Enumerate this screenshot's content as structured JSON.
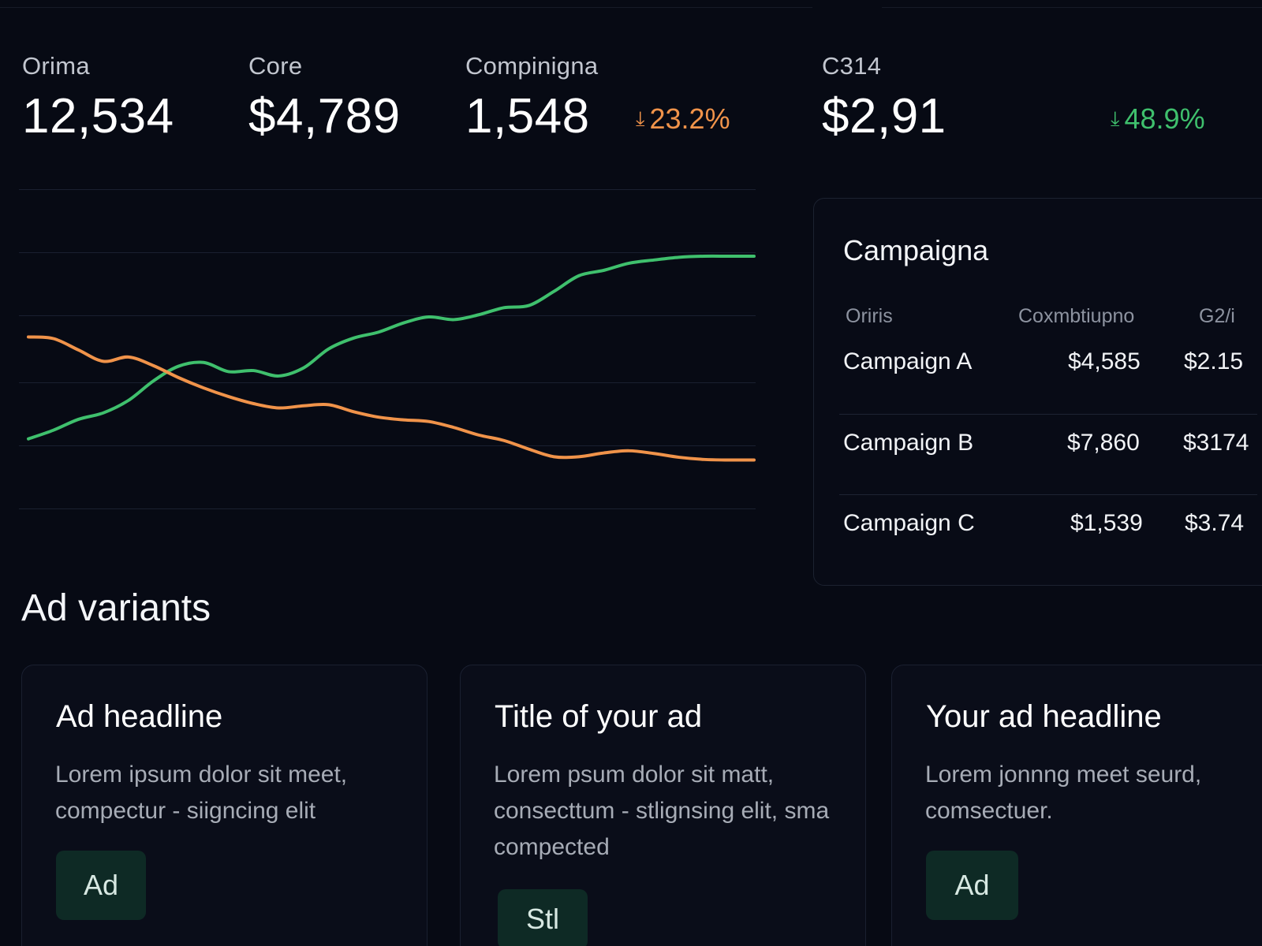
{
  "kpis": [
    {
      "label": "Orima",
      "value": "12,534"
    },
    {
      "label": "Core",
      "value": "$4,789"
    },
    {
      "label": "Compinigna",
      "value": "1,548",
      "delta": "23.2%",
      "delta_color": "#f0934a"
    },
    {
      "label": "C314",
      "value": "$2,91",
      "delta": "48.9%",
      "delta_color": "#3fc06d"
    }
  ],
  "chart_data": {
    "type": "line",
    "grid": true,
    "legend": "none",
    "x": [
      0,
      1,
      2,
      3,
      4,
      5,
      6,
      7,
      8,
      9,
      10,
      11,
      12,
      13,
      14,
      15,
      16,
      17,
      18,
      19,
      20,
      21,
      22,
      23,
      24,
      25,
      26,
      27,
      28,
      29
    ],
    "ylim": [
      0,
      4
    ],
    "series": [
      {
        "color": "#3fc06d",
        "values": [
          0.63,
          0.79,
          0.99,
          1.11,
          1.34,
          1.7,
          1.97,
          2.04,
          1.87,
          1.89,
          1.79,
          1.94,
          2.29,
          2.49,
          2.6,
          2.77,
          2.88,
          2.83,
          2.92,
          3.05,
          3.09,
          3.35,
          3.64,
          3.74,
          3.87,
          3.93,
          3.98,
          4.0,
          4.0,
          4.0
        ]
      },
      {
        "color": "#f0934a",
        "values": [
          2.51,
          2.48,
          2.27,
          2.06,
          2.14,
          1.98,
          1.76,
          1.57,
          1.41,
          1.28,
          1.2,
          1.24,
          1.26,
          1.13,
          1.03,
          0.98,
          0.95,
          0.84,
          0.7,
          0.6,
          0.44,
          0.3,
          0.3,
          0.37,
          0.41,
          0.36,
          0.29,
          0.25,
          0.24,
          0.24
        ]
      }
    ]
  },
  "campaigns": {
    "title": "Campaigna",
    "headers": [
      "Oriris",
      "Coxmbtiupno",
      "G2/i"
    ],
    "rows": [
      [
        "Campaign A",
        "$4,585",
        "$2.15"
      ],
      [
        "Campaign B",
        "$7,860",
        "$3174"
      ],
      [
        "Campaign C",
        "$1,539",
        "$3.74"
      ]
    ]
  },
  "ad_variants": {
    "title": "Ad variants",
    "cards": [
      {
        "title": "Ad headline",
        "body": "Lorem ipsum dolor sit meet, compectur - siigncing elit",
        "button": "Ad"
      },
      {
        "title": "Title of your ad",
        "body": "Lorem psum dolor sit matt, consecttum - stlignsing elit, sma compected",
        "button": "Stl"
      },
      {
        "title": "Your ad headline",
        "body": "Lorem jonnng meet seurd, comsectuer.",
        "button": "Ad"
      }
    ]
  }
}
